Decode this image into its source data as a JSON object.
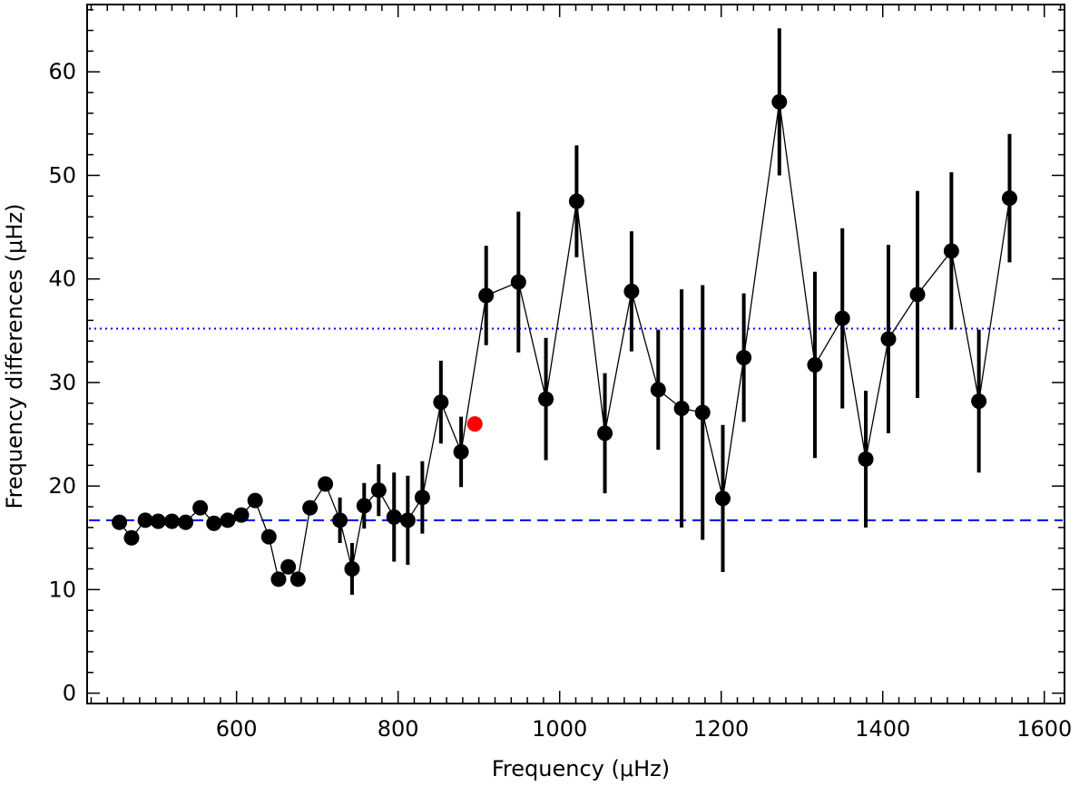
{
  "chart_data": {
    "type": "scatter",
    "xlabel": "Frequency (μHz)",
    "ylabel": "Frequency differences (μHz)",
    "xlim": [
      415,
      1625
    ],
    "ylim": [
      -1,
      66.5
    ],
    "x_ticks": [
      600,
      800,
      1000,
      1200,
      1400,
      1600
    ],
    "y_ticks": [
      0,
      10,
      20,
      30,
      40,
      50,
      60
    ],
    "grid": false,
    "series": [
      {
        "style": "black-markers-with-line",
        "color": "#000000",
        "points": [
          {
            "x": 455,
            "y": 16.5
          },
          {
            "x": 470,
            "y": 15.0
          },
          {
            "x": 487,
            "y": 16.7
          },
          {
            "x": 503,
            "y": 16.6
          },
          {
            "x": 520,
            "y": 16.6
          },
          {
            "x": 537,
            "y": 16.5
          },
          {
            "x": 555,
            "y": 17.9
          },
          {
            "x": 572,
            "y": 16.4
          },
          {
            "x": 589,
            "y": 16.7
          },
          {
            "x": 606,
            "y": 17.2
          },
          {
            "x": 623,
            "y": 18.6
          },
          {
            "x": 640,
            "y": 15.1
          },
          {
            "x": 652,
            "y": 11.0
          },
          {
            "x": 664,
            "y": 12.2
          },
          {
            "x": 676,
            "y": 11.0
          },
          {
            "x": 691,
            "y": 17.9
          },
          {
            "x": 710,
            "y": 20.2
          },
          {
            "x": 728,
            "y": 16.7,
            "err": 2.2
          },
          {
            "x": 743,
            "y": 12.0,
            "err": 2.5
          },
          {
            "x": 758,
            "y": 18.1,
            "err": 2.2
          },
          {
            "x": 776,
            "y": 19.6,
            "err": 2.5
          },
          {
            "x": 795,
            "y": 17.0,
            "err": 4.3
          },
          {
            "x": 812,
            "y": 16.7,
            "err": 4.3
          },
          {
            "x": 830,
            "y": 18.9,
            "err": 3.5
          },
          {
            "x": 853,
            "y": 28.1,
            "err": 4.0
          },
          {
            "x": 878,
            "y": 23.3,
            "err": 3.4
          },
          {
            "x": 909,
            "y": 38.4,
            "err": 4.8
          },
          {
            "x": 949,
            "y": 39.7,
            "err": 6.8
          },
          {
            "x": 983,
            "y": 28.4,
            "err": 5.9
          },
          {
            "x": 1021,
            "y": 47.5,
            "err": 5.4
          },
          {
            "x": 1056,
            "y": 25.1,
            "err": 5.8
          },
          {
            "x": 1089,
            "y": 38.8,
            "err": 5.8
          },
          {
            "x": 1122,
            "y": 29.3,
            "err": 5.8
          },
          {
            "x": 1151,
            "y": 27.5,
            "err": 11.5
          },
          {
            "x": 1177,
            "y": 27.1,
            "err": 12.3
          },
          {
            "x": 1202,
            "y": 18.8,
            "err": 7.1
          },
          {
            "x": 1228,
            "y": 32.4,
            "err": 6.2
          },
          {
            "x": 1272,
            "y": 57.1,
            "err": 7.1
          },
          {
            "x": 1316,
            "y": 31.7,
            "err": 9.0
          },
          {
            "x": 1350,
            "y": 36.2,
            "err": 8.7
          },
          {
            "x": 1379,
            "y": 22.6,
            "err": 6.6
          },
          {
            "x": 1407,
            "y": 34.2,
            "err": 9.1
          },
          {
            "x": 1443,
            "y": 38.5,
            "err": 10.0
          },
          {
            "x": 1485,
            "y": 42.7,
            "err": 7.6
          },
          {
            "x": 1519,
            "y": 28.2,
            "err": 6.9
          },
          {
            "x": 1557,
            "y": 47.8,
            "err": 6.2
          }
        ]
      },
      {
        "style": "red-marker",
        "color": "#ff0000",
        "points": [
          {
            "x": 895,
            "y": 26.0,
            "xerr": 8
          }
        ]
      }
    ],
    "reference_lines": [
      {
        "y": 16.7,
        "style": "dashed",
        "color": "#0000ff"
      },
      {
        "y": 35.2,
        "style": "dotted",
        "color": "#0000ff"
      }
    ]
  }
}
